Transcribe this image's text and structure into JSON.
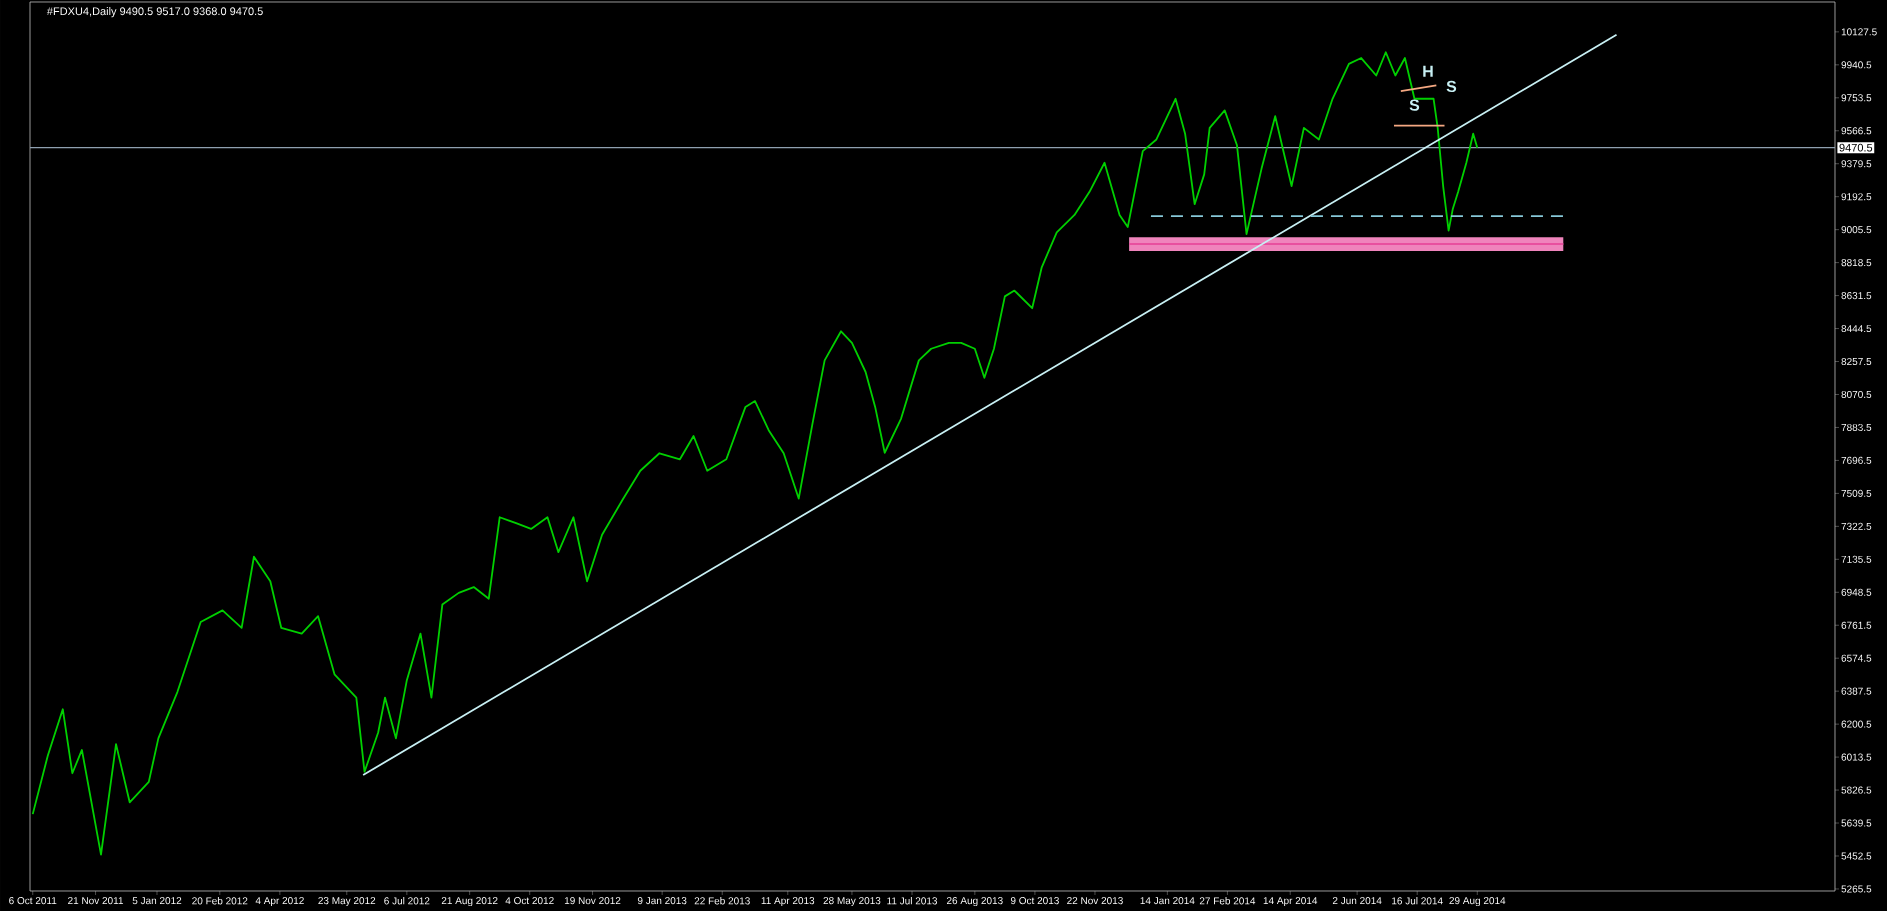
{
  "chart_data": {
    "type": "line",
    "title": "#FDXU4,Daily  9490.5 9517.0 9368.0 9470.5",
    "xlim": [
      "2011-10-04",
      "2015-05-18"
    ],
    "ylim": [
      5254,
      10297
    ],
    "xticks": [
      {
        "value": "2011-10-06",
        "label": "6 Oct 2011"
      },
      {
        "value": "2011-11-21",
        "label": "21 Nov 2011"
      },
      {
        "value": "2012-01-05",
        "label": "5 Jan 2012"
      },
      {
        "value": "2012-02-20",
        "label": "20 Feb 2012"
      },
      {
        "value": "2012-04-04",
        "label": "4 Apr 2012"
      },
      {
        "value": "2012-05-23",
        "label": "23 May 2012"
      },
      {
        "value": "2012-07-06",
        "label": "6 Jul 2012"
      },
      {
        "value": "2012-08-21",
        "label": "21 Aug 2012"
      },
      {
        "value": "2012-10-04",
        "label": "4 Oct 2012"
      },
      {
        "value": "2012-11-19",
        "label": "19 Nov 2012"
      },
      {
        "value": "2013-01-09",
        "label": "9 Jan 2013"
      },
      {
        "value": "2013-02-22",
        "label": "22 Feb 2013"
      },
      {
        "value": "2013-04-11",
        "label": "11 Apr 2013"
      },
      {
        "value": "2013-05-28",
        "label": "28 May 2013"
      },
      {
        "value": "2013-07-11",
        "label": "11 Jul 2013"
      },
      {
        "value": "2013-08-26",
        "label": "26 Aug 2013"
      },
      {
        "value": "2013-10-09",
        "label": "9 Oct 2013"
      },
      {
        "value": "2013-11-22",
        "label": "22 Nov 2013"
      },
      {
        "value": "2014-01-14",
        "label": "14 Jan 2014"
      },
      {
        "value": "2014-02-27",
        "label": "27 Feb 2014"
      },
      {
        "value": "2014-04-14",
        "label": "14 Apr 2014"
      },
      {
        "value": "2014-06-02",
        "label": "2 Jun 2014"
      },
      {
        "value": "2014-07-16",
        "label": "16 Jul 2014"
      },
      {
        "value": "2014-08-29",
        "label": "29 Aug 2014"
      }
    ],
    "yticks": [
      5265.5,
      5452.5,
      5639.5,
      5826.5,
      6013.5,
      6200.5,
      6387.5,
      6574.5,
      6761.5,
      6948.5,
      7135.5,
      7322.5,
      7509.5,
      7696.5,
      7883.5,
      8070.5,
      8257.5,
      8444.5,
      8631.5,
      8818.5,
      9005.5,
      9192.5,
      9379.5,
      9566.5,
      9753.5,
      9940.5,
      10127.5
    ],
    "marker": "none",
    "ref_lines": [
      {
        "axis": "y",
        "value": 9470.5,
        "label": "9470.5",
        "color": "#8fa0b0"
      }
    ],
    "annotations": [
      "S",
      "H",
      "S"
    ],
    "series": [
      {
        "color": "#e8509f",
        "x": [
          "2013-12-17",
          "2014-10-31"
        ],
        "values": [
          8924,
          8924
        ],
        "lower": [
          8884,
          8884
        ],
        "upper": [
          8963,
          8963
        ]
      },
      {
        "color": "#00d000",
        "x": [
          "2011-10-06",
          "2011-10-17",
          "2011-10-28",
          "2011-11-04",
          "2011-11-11",
          "2011-11-25",
          "2011-12-06",
          "2011-12-16",
          "2011-12-30",
          "2012-01-06",
          "2012-01-20",
          "2012-02-06",
          "2012-02-22",
          "2012-03-07",
          "2012-03-16",
          "2012-03-28",
          "2012-04-05",
          "2012-04-20",
          "2012-05-02",
          "2012-05-14",
          "2012-05-30",
          "2012-06-05",
          "2012-06-15",
          "2012-06-20",
          "2012-06-28",
          "2012-07-06",
          "2012-07-16",
          "2012-07-24",
          "2012-08-01",
          "2012-08-13",
          "2012-08-24",
          "2012-09-04",
          "2012-09-12",
          "2012-09-24",
          "2012-10-05",
          "2012-10-17",
          "2012-10-25",
          "2012-11-05",
          "2012-11-15",
          "2012-11-26",
          "2012-12-11",
          "2012-12-24",
          "2013-01-07",
          "2013-01-22",
          "2013-02-01",
          "2013-02-11",
          "2013-02-25",
          "2013-03-11",
          "2013-03-18",
          "2013-03-28",
          "2013-04-08",
          "2013-04-19",
          "2013-04-29",
          "2013-05-08",
          "2013-05-20",
          "2013-05-28",
          "2013-06-07",
          "2013-06-14",
          "2013-06-21",
          "2013-07-03",
          "2013-07-16",
          "2013-07-25",
          "2013-08-07",
          "2013-08-16",
          "2013-08-26",
          "2013-09-02",
          "2013-09-09",
          "2013-09-17",
          "2013-09-24",
          "2013-10-07",
          "2013-10-14",
          "2013-10-25",
          "2013-11-07",
          "2013-11-18",
          "2013-11-29",
          "2013-12-10",
          "2013-12-16",
          "2013-12-27",
          "2014-01-06",
          "2014-01-20",
          "2014-01-27",
          "2014-02-03",
          "2014-02-10",
          "2014-02-14",
          "2014-02-25",
          "2014-03-06",
          "2014-03-13",
          "2014-03-24",
          "2014-04-03",
          "2014-04-15",
          "2014-04-24",
          "2014-05-05",
          "2014-05-15",
          "2014-05-27",
          "2014-06-05",
          "2014-06-16",
          "2014-06-23",
          "2014-06-30",
          "2014-07-07",
          "2014-07-14",
          "2014-07-21",
          "2014-07-28",
          "2014-07-31",
          "2014-08-04",
          "2014-08-08",
          "2014-08-11",
          "2014-08-15",
          "2014-08-21",
          "2014-08-26",
          "2014-08-29"
        ],
        "values": [
          5690,
          6021,
          6285,
          5922,
          6054,
          5460,
          6087,
          5757,
          5873,
          6120,
          6384,
          6780,
          6846,
          6747,
          7150,
          7011,
          6747,
          6714,
          6813,
          6483,
          6351,
          5930,
          6153,
          6351,
          6120,
          6450,
          6714,
          6351,
          6879,
          6945,
          6978,
          6912,
          7374,
          7341,
          7308,
          7374,
          7176,
          7374,
          7011,
          7275,
          7473,
          7638,
          7737,
          7703,
          7835,
          7638,
          7703,
          8000,
          8033,
          7868,
          7737,
          7480,
          7901,
          8264,
          8429,
          8363,
          8198,
          8000,
          7740,
          7934,
          8264,
          8330,
          8363,
          8363,
          8330,
          8165,
          8330,
          8627,
          8660,
          8560,
          8792,
          8990,
          9089,
          9220,
          9385,
          9089,
          9020,
          9451,
          9517,
          9748,
          9550,
          9150,
          9319,
          9583,
          9682,
          9484,
          8980,
          9352,
          9649,
          9253,
          9583,
          9517,
          9748,
          9946,
          9979,
          9880,
          10012,
          9880,
          9979,
          9748,
          9748,
          9748,
          9583,
          9253,
          9000,
          9121,
          9220,
          9385,
          9550,
          9470
        ]
      },
      {
        "color": "#c8f0f4",
        "x": [
          "2012-06-04",
          "2014-12-09"
        ],
        "values": [
          5912,
          10111
        ]
      },
      {
        "color": "#87c8d8",
        "line_style": "dashed",
        "x": [
          "2014-01-02",
          "2014-10-31"
        ],
        "values": [
          9082,
          9082
        ]
      },
      {
        "color": "#f4a882",
        "x": [
          "2014-06-29",
          "2014-08-05"
        ],
        "values": [
          9596,
          9596
        ]
      },
      {
        "color": "#f4a882",
        "x": [
          "2014-07-04",
          "2014-07-30"
        ],
        "values": [
          9791,
          9824
        ]
      }
    ]
  }
}
